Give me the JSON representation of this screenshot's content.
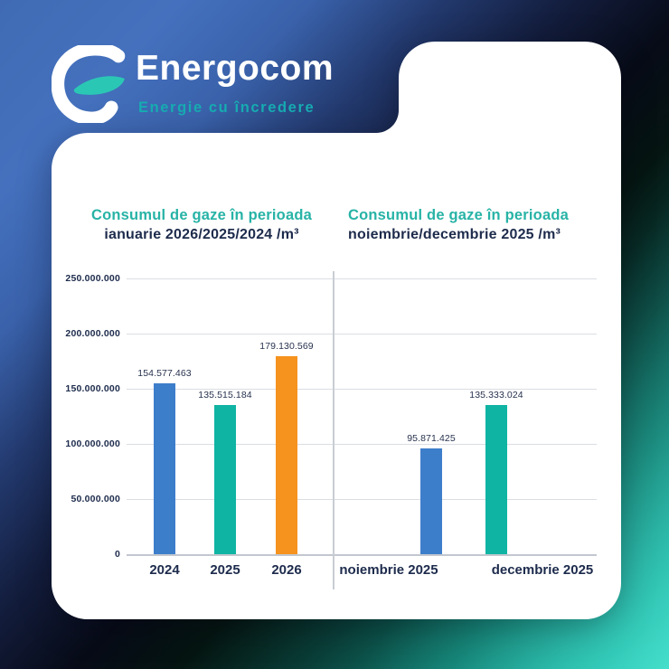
{
  "brand": {
    "name": "Energocom",
    "tagline": "Energie cu încredere"
  },
  "colors": {
    "bar_blue": "#3d7ecb",
    "bar_teal": "#0fb4a3",
    "bar_orange": "#f6921e",
    "title_teal": "#27b3a6",
    "text_navy": "#1d2b4c",
    "background_blue": "#4470bd",
    "background_teal": "#2bd1bd",
    "card_white": "#ffffff"
  },
  "chart_data": [
    {
      "type": "bar",
      "title_line1": "Consumul de gaze în perioada",
      "title_line2": "ianuarie 2026/2025/2024 /m³",
      "categories": [
        "2024",
        "2025",
        "2026"
      ],
      "values": [
        154577463,
        135515184,
        179130569
      ],
      "value_labels": [
        "154.577.463",
        "135.515.184",
        "179.130.569"
      ],
      "bar_colors": [
        "#3d7ecb",
        "#0fb4a3",
        "#f6921e"
      ],
      "ylim": [
        0,
        250000000
      ],
      "yticks": [
        "250.000.000",
        "200.000.000",
        "150.000.000",
        "100.000.000",
        "50.000.000",
        "0"
      ],
      "grid": true,
      "legend": "none"
    },
    {
      "type": "bar",
      "title_line1": "Consumul de gaze în perioada",
      "title_line2": "noiembrie/decembrie 2025 /m³",
      "categories": [
        "noiembrie 2025",
        "decembrie 2025"
      ],
      "values": [
        95871425,
        135333024
      ],
      "value_labels": [
        "95.871.425",
        "135.333.024"
      ],
      "bar_colors": [
        "#3d7ecb",
        "#0fb4a3"
      ],
      "ylim": [
        0,
        250000000
      ],
      "yticks": [],
      "grid": true,
      "legend": "none"
    }
  ]
}
